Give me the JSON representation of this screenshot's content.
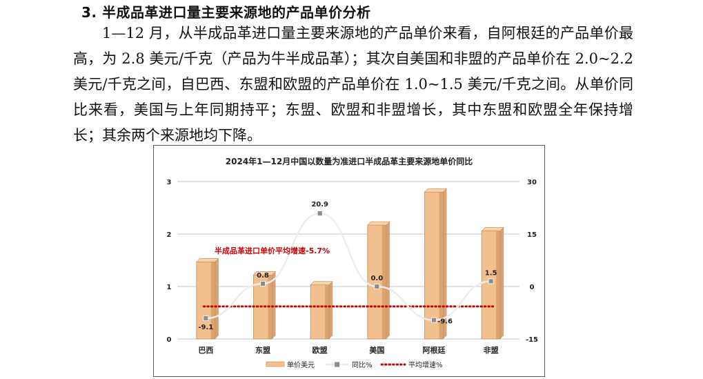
{
  "section": {
    "heading": "3. 半成品革进口量主要来源地的产品单价分析",
    "paragraph": "1—12 月，从半成品革进口量主要来源地的产品单价来看，自阿根廷的产品单价最高，为 2.8 美元/千克（产品为牛半成品革）；其次自美国和非盟的产品单价在 2.0~2.2 美元/千克之间，自巴西、东盟和欧盟的产品单价在 1.0~1.5 美元/千克之间。从单价同比来看，美国与上年同期持平；东盟、欧盟和非盟增长，其中东盟和欧盟全年保持增长；其余两个来源地均下降。"
  },
  "chart_data": {
    "type": "bar",
    "title": "2024年1—12月中国以数量为准进口半成品革主要来源地单价同比",
    "categories": [
      "巴西",
      "东盟",
      "欧盟",
      "美国",
      "阿根廷",
      "非盟"
    ],
    "series": [
      {
        "name": "单价美元",
        "type": "bar",
        "axis": "left",
        "values": [
          1.47,
          1.22,
          1.03,
          2.17,
          2.8,
          2.06
        ]
      },
      {
        "name": "同比%",
        "type": "line",
        "axis": "right",
        "values": [
          -9.1,
          0.8,
          20.9,
          0.0,
          -9.6,
          1.5
        ],
        "labels": [
          "-9.1",
          "0.8",
          "20.9",
          "0.0",
          "-9.6",
          "1.5"
        ]
      },
      {
        "name": "平均增速%",
        "type": "line",
        "axis": "right",
        "style": "dotted",
        "values": [
          -5.7,
          -5.7,
          -5.7,
          -5.7,
          -5.7,
          -5.7
        ]
      }
    ],
    "y_left": {
      "ylim": [
        0,
        3
      ],
      "ticks": [
        "0",
        "1",
        "2",
        "3"
      ]
    },
    "y_right": {
      "ylim": [
        -15,
        30
      ],
      "ticks": [
        "-15",
        "0",
        "15",
        "30"
      ]
    },
    "annotation": "半成品革进口单价平均增速-5.7%",
    "legend_placement": "bottom",
    "grid": true,
    "colors": {
      "bar": "#f2c08e",
      "bar_dark": "#c98c55",
      "line": "#ededed",
      "marker": "#8c8c8c",
      "avg_line": "#cc0000",
      "grid": "#b5c7d9",
      "annotation": "#cc0000"
    }
  }
}
